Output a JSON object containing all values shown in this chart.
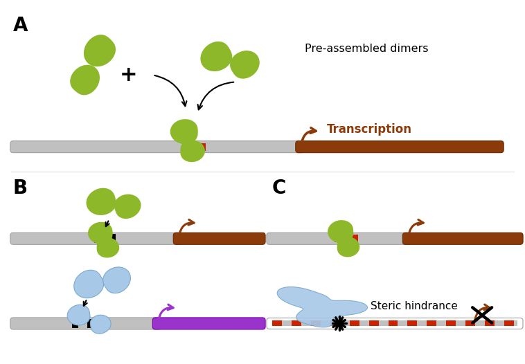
{
  "bg": "#ffffff",
  "green": "#8DB82A",
  "green_hi": "#C8E060",
  "blue": "#A8C8E8",
  "blue_dk": "#7AAACE",
  "gray_dna": "#C0C0C0",
  "gray_dna_dk": "#A0A0A0",
  "red": "#CC2200",
  "brown": "#8B3A0A",
  "purple": "#9933CC",
  "black": "#000000",
  "label_A": "A",
  "label_B": "B",
  "label_C": "C",
  "txt_pre": "Pre-assembled dimers",
  "txt_trans": "Transcription",
  "txt_steric": "Steric hindrance"
}
